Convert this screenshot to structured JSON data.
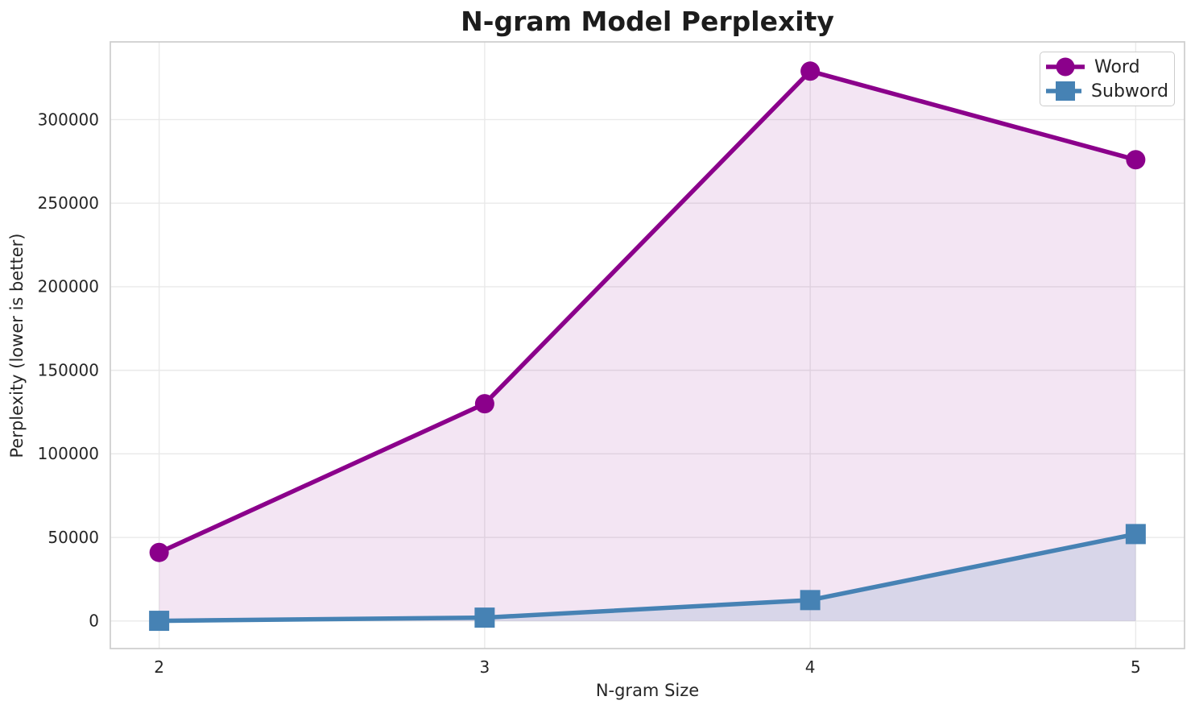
{
  "chart_data": {
    "type": "line",
    "title": "N-gram Model Perplexity",
    "xlabel": "N-gram Size",
    "ylabel": "Perplexity (lower is better)",
    "x": [
      2,
      3,
      4,
      5
    ],
    "xtick_labels": [
      "2",
      "3",
      "4",
      "5"
    ],
    "yticks": [
      0,
      50000,
      100000,
      150000,
      200000,
      250000,
      300000
    ],
    "ytick_labels": [
      "0",
      "50000",
      "100000",
      "150000",
      "200000",
      "250000",
      "300000"
    ],
    "xlim": [
      1.85,
      5.15
    ],
    "ylim": [
      -16500,
      346500
    ],
    "grid": true,
    "legend_position": "upper right",
    "series": [
      {
        "name": "Word",
        "color": "#8B008B",
        "marker": "circle",
        "fill_opacity": 0.1,
        "values": [
          41000,
          130000,
          329000,
          276000
        ]
      },
      {
        "name": "Subword",
        "color": "#4682B4",
        "marker": "square",
        "fill_opacity": 0.15,
        "values": [
          100,
          2000,
          12500,
          52000
        ]
      }
    ],
    "style": {
      "background": "#FFFFFF",
      "grid_color": "#E9E9E9",
      "spine_color": "#CFCFCF",
      "text_color": "#262626",
      "line_width": 5.5,
      "marker_size": 24
    }
  }
}
